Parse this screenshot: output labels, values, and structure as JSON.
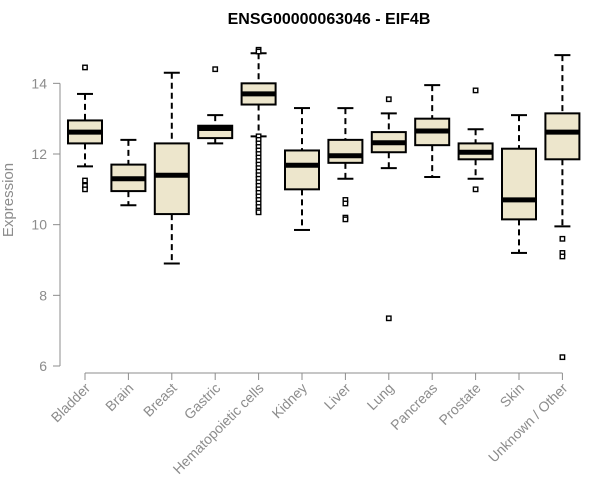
{
  "chart_data": {
    "type": "boxplot",
    "title": "ENSG00000063046 - EIF4B",
    "xlabel": "",
    "ylabel": "Expression",
    "ylim": [
      6,
      15
    ],
    "yticks": [
      6,
      8,
      10,
      12,
      14
    ],
    "box_fill": "#ede6cc",
    "categories": [
      "Bladder",
      "Brain",
      "Breast",
      "Gastric",
      "Hematopoietic cells",
      "Kidney",
      "Liver",
      "Lung",
      "Pancreas",
      "Prostate",
      "Skin",
      "Unknown / Other"
    ],
    "boxes": [
      {
        "name": "Bladder",
        "whisker_low": 11.65,
        "q1": 12.3,
        "median": 12.62,
        "q3": 12.95,
        "whisker_high": 13.7,
        "outliers": [
          14.45,
          11.25,
          11.1,
          11.0
        ]
      },
      {
        "name": "Brain",
        "whisker_low": 10.55,
        "q1": 10.95,
        "median": 11.3,
        "q3": 11.7,
        "whisker_high": 12.4,
        "outliers": []
      },
      {
        "name": "Breast",
        "whisker_low": 8.9,
        "q1": 10.3,
        "median": 11.4,
        "q3": 12.3,
        "whisker_high": 14.3,
        "outliers": []
      },
      {
        "name": "Gastric",
        "whisker_low": 12.3,
        "q1": 12.45,
        "median": 12.72,
        "q3": 12.8,
        "whisker_high": 13.1,
        "outliers": [
          14.4
        ]
      },
      {
        "name": "Hematopoietic cells",
        "whisker_low": 12.5,
        "q1": 13.4,
        "median": 13.7,
        "q3": 14.0,
        "whisker_high": 14.85,
        "outliers": [
          14.95,
          14.9,
          12.5,
          12.4,
          12.3,
          12.2,
          12.1,
          12.0,
          11.9,
          11.8,
          11.7,
          11.6,
          11.5,
          11.4,
          11.3,
          11.2,
          11.1,
          11.0,
          10.9,
          10.8,
          10.7,
          10.6,
          10.5,
          10.4,
          10.35
        ]
      },
      {
        "name": "Kidney",
        "whisker_low": 9.85,
        "q1": 11.0,
        "median": 11.68,
        "q3": 12.1,
        "whisker_high": 13.3,
        "outliers": []
      },
      {
        "name": "Liver",
        "whisker_low": 11.3,
        "q1": 11.75,
        "median": 11.95,
        "q3": 12.4,
        "whisker_high": 13.3,
        "outliers": [
          10.7,
          10.6,
          10.2,
          10.15
        ]
      },
      {
        "name": "Lung",
        "whisker_low": 11.6,
        "q1": 12.05,
        "median": 12.32,
        "q3": 12.62,
        "whisker_high": 13.15,
        "outliers": [
          13.55,
          7.35
        ]
      },
      {
        "name": "Pancreas",
        "whisker_low": 11.35,
        "q1": 12.25,
        "median": 12.65,
        "q3": 13.0,
        "whisker_high": 13.95,
        "outliers": []
      },
      {
        "name": "Prostate",
        "whisker_low": 11.3,
        "q1": 11.85,
        "median": 12.05,
        "q3": 12.3,
        "whisker_high": 12.7,
        "outliers": [
          13.8,
          11.0
        ]
      },
      {
        "name": "Skin",
        "whisker_low": 9.2,
        "q1": 10.15,
        "median": 10.7,
        "q3": 12.15,
        "whisker_high": 13.1,
        "outliers": []
      },
      {
        "name": "Unknown / Other",
        "whisker_low": 9.95,
        "q1": 11.85,
        "median": 12.62,
        "q3": 13.15,
        "whisker_high": 14.8,
        "outliers": [
          9.6,
          9.2,
          9.1,
          6.25
        ]
      }
    ]
  }
}
